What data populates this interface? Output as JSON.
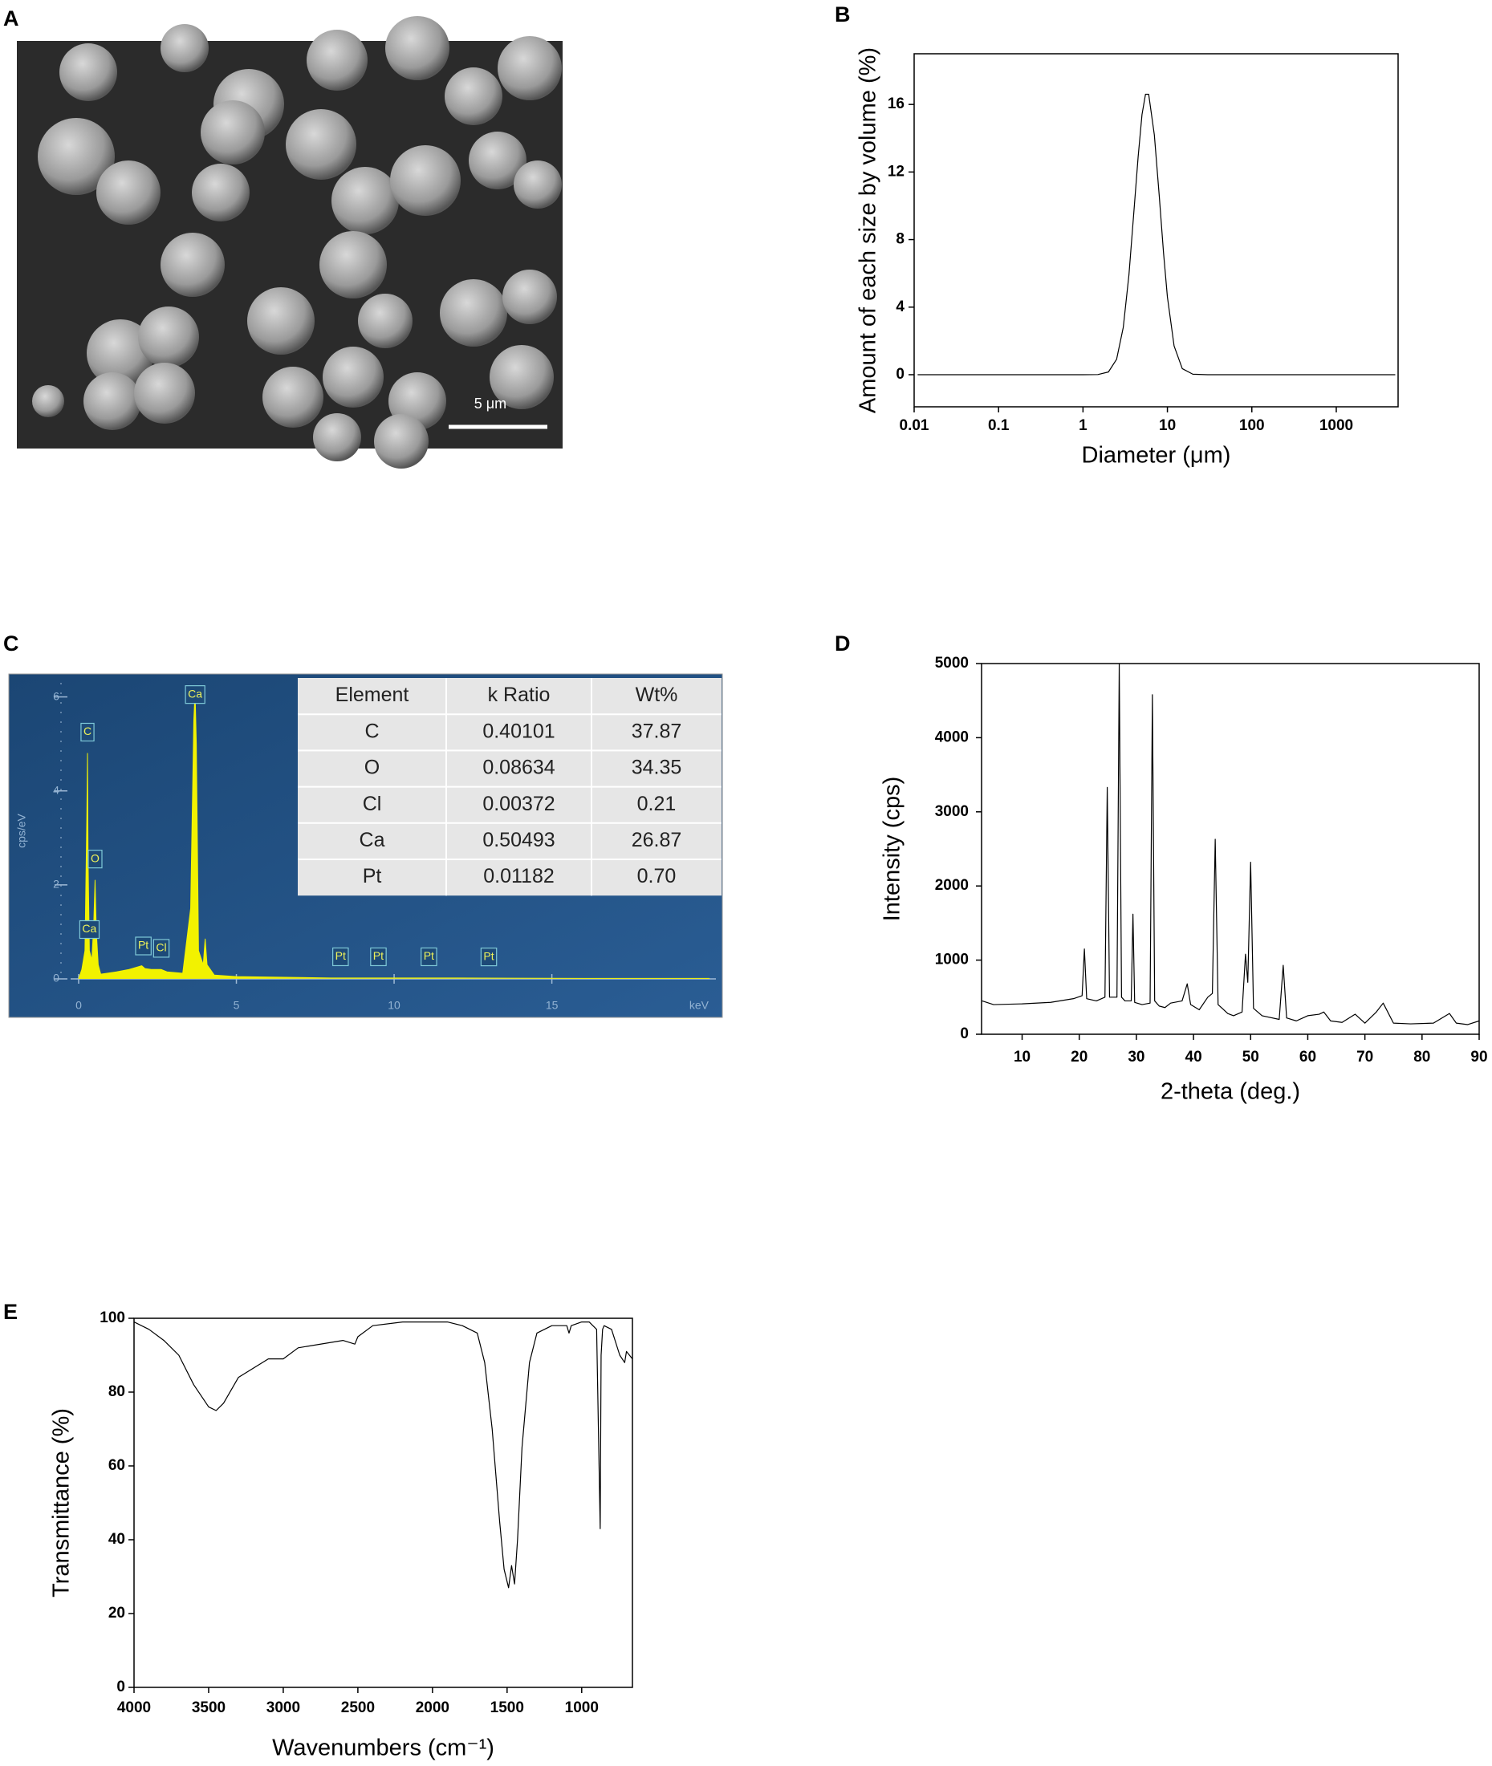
{
  "panel_labels": [
    "A",
    "B",
    "C",
    "D",
    "E"
  ],
  "image_a": {
    "scale_bar_label": "5 μm"
  },
  "table_c": {
    "header": [
      "Element",
      "k Ratio",
      "Wt%"
    ],
    "rows": [
      [
        "C",
        "0.40101",
        "37.87"
      ],
      [
        "O",
        "0.08634",
        "34.35"
      ],
      [
        "Cl",
        "0.00372",
        "0.21"
      ],
      [
        "Ca",
        "0.50493",
        "26.87"
      ],
      [
        "Pt",
        "0.01182",
        "0.70"
      ]
    ]
  },
  "chart_data": [
    {
      "type": "line",
      "x_label": "Diameter (μm)",
      "y_label": "Amount of each size by volume (%)",
      "xscale": "log",
      "xlim": [
        0.01,
        5400
      ],
      "ylim": [
        -1.9,
        19
      ],
      "xticks": [
        0.01,
        0.1,
        1,
        10,
        100,
        1000
      ],
      "yticks": [
        0,
        4,
        8,
        12,
        16
      ],
      "x": [
        0.011,
        0.1,
        1,
        1.5,
        2,
        2.5,
        3,
        3.5,
        4,
        4.5,
        5,
        5.5,
        6,
        7,
        8,
        9,
        10,
        12,
        15,
        20,
        30,
        100,
        1000,
        5000
      ],
      "series": [
        {
          "color": "#000000",
          "values": [
            0,
            0,
            0,
            0.01,
            0.16,
            0.91,
            2.8,
            5.9,
            9.6,
            12.9,
            15.4,
            16.6,
            16.6,
            14.2,
            10.6,
            7.2,
            4.6,
            1.7,
            0.36,
            0.03,
            0,
            0,
            0,
            0
          ]
        }
      ]
    },
    {
      "type": "area",
      "y_label": "cps/eV",
      "x_unit": "keV",
      "xlim": [
        0,
        20.2
      ],
      "ylim": [
        0,
        6.3
      ],
      "xticks": [
        0,
        5,
        10,
        15
      ],
      "yticks": [
        0,
        2,
        4,
        6
      ],
      "x": [
        0,
        0.1,
        0.2,
        0.26,
        0.28,
        0.3,
        0.34,
        0.38,
        0.42,
        0.48,
        0.52,
        0.56,
        0.62,
        0.7,
        0.9,
        1.2,
        1.6,
        2.0,
        2.05,
        2.1,
        2.3,
        2.62,
        2.8,
        3.3,
        3.55,
        3.65,
        3.69,
        3.73,
        3.8,
        3.95,
        4.01,
        4.07,
        4.3,
        5,
        8,
        12,
        16,
        20
      ],
      "series": [
        {
          "color": "#f2f200",
          "values": [
            0,
            0.2,
            0.6,
            3.5,
            4.8,
            2.5,
            0.6,
            0.5,
            0.4,
            1.2,
            2.1,
            1.0,
            0.3,
            0.1,
            0.12,
            0.15,
            0.2,
            0.28,
            0.25,
            0.22,
            0.2,
            0.2,
            0.15,
            0.12,
            1.5,
            5.5,
            6.1,
            5.0,
            0.6,
            0.3,
            0.85,
            0.3,
            0.08,
            0.05,
            0.02,
            0.02,
            0.01,
            0.01
          ]
        }
      ],
      "peak_labels": [
        {
          "text": "Ca",
          "x": 0.34
        },
        {
          "text": "C",
          "x": 0.28
        },
        {
          "text": "O",
          "x": 0.52
        },
        {
          "text": "Pt",
          "x": 2.05
        },
        {
          "text": "Cl",
          "x": 2.62
        },
        {
          "text": "Ca",
          "x": 3.69
        },
        {
          "text": "Pt",
          "x": 8.3
        },
        {
          "text": "Pt",
          "x": 9.5
        },
        {
          "text": "Pt",
          "x": 11.1
        },
        {
          "text": "Pt",
          "x": 13.0
        }
      ]
    },
    {
      "type": "line",
      "x_label": "2-theta (deg.)",
      "y_label": "Intensity (cps)",
      "xlim": [
        2.9,
        90
      ],
      "ylim": [
        0,
        5000
      ],
      "xticks": [
        10,
        20,
        30,
        40,
        50,
        60,
        70,
        80,
        90
      ],
      "yticks": [
        0,
        1000,
        2000,
        3000,
        4000,
        5000
      ],
      "x": [
        3,
        5,
        10,
        15,
        19,
        20.5,
        20.9,
        21.3,
        23,
        24.5,
        24.9,
        25.3,
        26.6,
        27.0,
        27.4,
        28,
        29.1,
        29.4,
        29.7,
        31,
        32.4,
        32.8,
        33.2,
        34,
        35,
        36,
        38,
        38.9,
        39.5,
        41,
        42.5,
        43.3,
        43.8,
        44.3,
        46,
        47,
        48.5,
        49.1,
        49.5,
        50,
        50.5,
        52,
        55,
        55.7,
        56.3,
        58,
        60,
        62,
        62.8,
        64,
        66,
        68.3,
        70,
        72,
        73.2,
        75,
        78,
        82,
        84.8,
        86,
        88,
        90
      ],
      "series": [
        {
          "color": "#000000",
          "values": [
            450,
            400,
            410,
            430,
            480,
            520,
            1150,
            480,
            450,
            500,
            3330,
            500,
            500,
            5000,
            500,
            450,
            450,
            1620,
            430,
            400,
            420,
            4580,
            450,
            380,
            360,
            420,
            450,
            680,
            400,
            330,
            500,
            550,
            2630,
            400,
            280,
            250,
            300,
            1080,
            700,
            2320,
            350,
            250,
            200,
            930,
            220,
            180,
            250,
            270,
            300,
            180,
            160,
            270,
            150,
            300,
            420,
            150,
            140,
            150,
            280,
            150,
            130,
            180
          ]
        }
      ]
    },
    {
      "type": "line",
      "x_label": "Wavenumbers (cm⁻¹)",
      "y_label": "Transmittance (%)",
      "xlim": [
        4000,
        660
      ],
      "ylim": [
        0,
        100
      ],
      "xticks": [
        4000,
        3500,
        3000,
        2500,
        2000,
        1500,
        1000
      ],
      "yticks": [
        0,
        20,
        40,
        60,
        80,
        100
      ],
      "x": [
        4000,
        3900,
        3800,
        3700,
        3600,
        3500,
        3450,
        3400,
        3300,
        3100,
        3000,
        2900,
        2600,
        2520,
        2500,
        2400,
        2200,
        2000,
        1900,
        1800,
        1700,
        1650,
        1600,
        1550,
        1520,
        1490,
        1470,
        1450,
        1430,
        1400,
        1350,
        1300,
        1200,
        1100,
        1085,
        1070,
        1000,
        950,
        900,
        876,
        870,
        860,
        850,
        800,
        745,
        712,
        700,
        660
      ],
      "series": [
        {
          "color": "#000000",
          "values": [
            99,
            97,
            94,
            90,
            82,
            76,
            75,
            77,
            84,
            89,
            89,
            92,
            94,
            93,
            95,
            98,
            99,
            99,
            99,
            98,
            96,
            88,
            70,
            45,
            32,
            27,
            33,
            28,
            40,
            65,
            88,
            96,
            98,
            98,
            96,
            98,
            99,
            99,
            97,
            43,
            90,
            97,
            98,
            97,
            90,
            88,
            91,
            89
          ]
        }
      ]
    }
  ]
}
